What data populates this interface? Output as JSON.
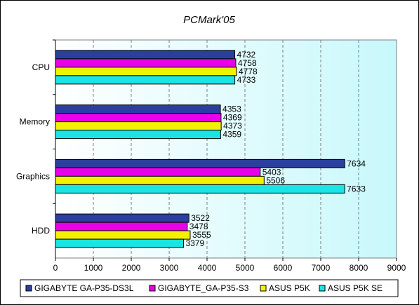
{
  "chart_data": {
    "type": "bar",
    "orientation": "horizontal",
    "title": "PCMark'05",
    "categories": [
      "CPU",
      "Memory",
      "Graphics",
      "HDD"
    ],
    "series": [
      {
        "name": "GIGABYTE GA-P35-DS3L",
        "color": "#2b3f9e",
        "values": [
          4732,
          4353,
          7634,
          3522
        ]
      },
      {
        "name": "GIGABYTE_GA-P35-S3",
        "color": "#e800e8",
        "values": [
          4758,
          4369,
          5403,
          3478
        ]
      },
      {
        "name": "ASUS P5K",
        "color": "#f2f200",
        "values": [
          4778,
          4373,
          5506,
          3555
        ]
      },
      {
        "name": "ASUS P5K SE",
        "color": "#1ae4e4",
        "values": [
          4733,
          4359,
          7633,
          3379
        ]
      }
    ],
    "xlim": [
      0,
      9000
    ],
    "xticks": [
      "0",
      "1000",
      "2000",
      "3000",
      "4000",
      "5000",
      "6000",
      "7000",
      "8000",
      "9000"
    ],
    "grid": "vertical",
    "legend_position": "bottom"
  }
}
